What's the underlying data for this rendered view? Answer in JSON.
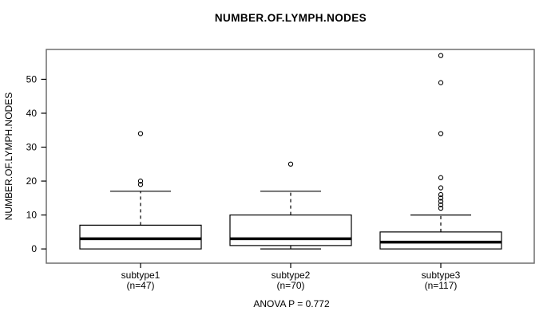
{
  "chart_data": {
    "type": "boxplot",
    "title": "NUMBER.OF.LYMPH.NODES",
    "ylabel": "NUMBER.OF.LYMPH.NODES",
    "xlabel": "",
    "footer": "ANOVA P = 0.772",
    "anova_p": 0.772,
    "yticks": [
      0,
      10,
      20,
      30,
      40,
      50
    ],
    "ylim": [
      -4.2,
      58.8
    ],
    "grid": false,
    "legend": false,
    "groups": [
      {
        "label": "subtype1",
        "sublabel": "(n=47)",
        "n": 47,
        "whisker_low": 0,
        "q1": 0,
        "median": 3,
        "q3": 7,
        "whisker_high": 17,
        "outliers": [
          19,
          20,
          34
        ]
      },
      {
        "label": "subtype2",
        "sublabel": "(n=70)",
        "n": 70,
        "whisker_low": 0,
        "q1": 1,
        "median": 3,
        "q3": 10,
        "whisker_high": 17,
        "outliers": [
          25
        ]
      },
      {
        "label": "subtype3",
        "sublabel": "(n=117)",
        "n": 117,
        "whisker_low": 0,
        "q1": 0,
        "median": 2,
        "q3": 5,
        "whisker_high": 10,
        "outliers": [
          12,
          13,
          14,
          15,
          16,
          18,
          21,
          34,
          49,
          57
        ]
      }
    ],
    "colors": {
      "box_stroke": "#000000",
      "median": "#000000",
      "whisker": "#000000",
      "outlier_stroke": "#000000",
      "border": "#6f6f6f",
      "tick": "#000000",
      "text": "#000000",
      "background": "#ffffff",
      "box_fill": "#ffffff"
    }
  }
}
